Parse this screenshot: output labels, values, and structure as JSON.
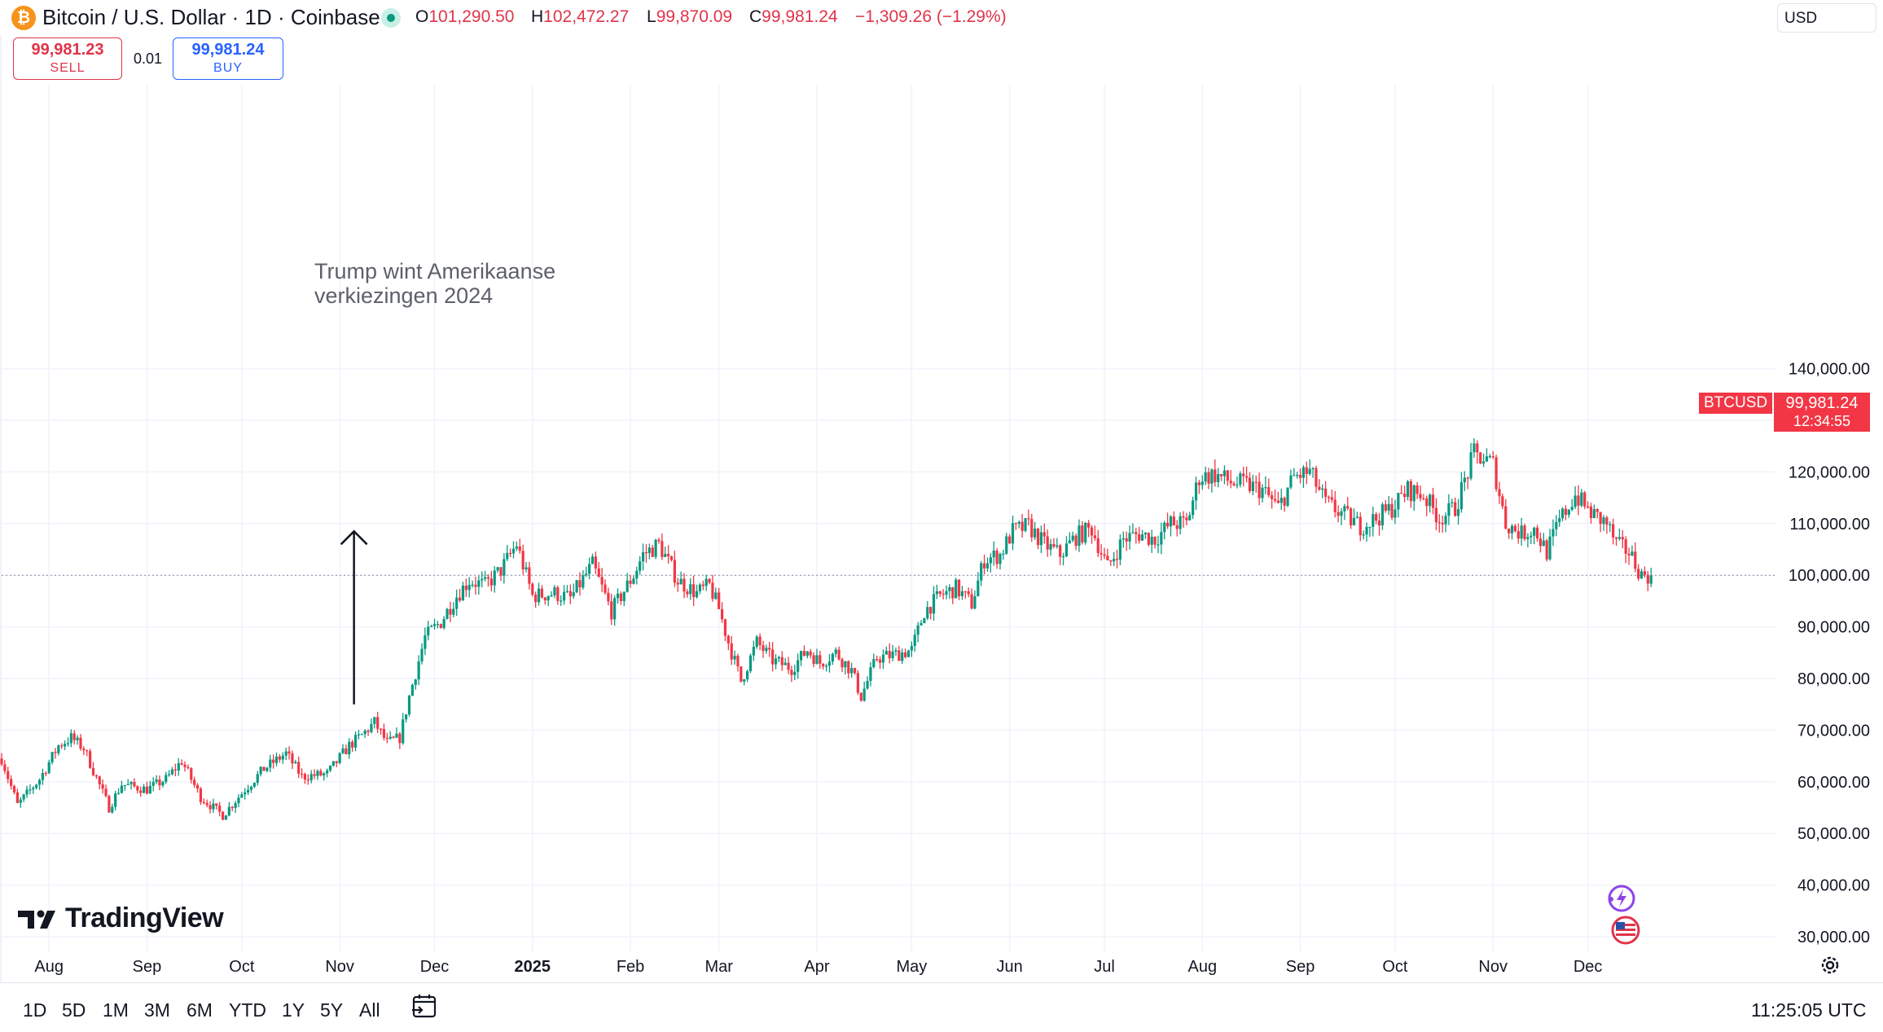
{
  "header": {
    "symbol_letter": "₿",
    "title": "Bitcoin / U.S. Dollar · 1D · Coinbase",
    "open_key": "O",
    "open_val": "101,290.50",
    "high_key": "H",
    "high_val": "102,472.27",
    "low_key": "L",
    "low_val": "99,870.09",
    "close_key": "C",
    "close_val": "99,981.24",
    "change": "−1,309.26 (−1.29%)",
    "currency": "USD"
  },
  "trade": {
    "sell_price": "99,981.23",
    "sell_label": "SELL",
    "spread": "0.01",
    "buy_price": "99,981.24",
    "buy_label": "BUY"
  },
  "price_tag": {
    "symbol": "BTCUSD",
    "price": "99,981.24",
    "countdown": "12:34:55"
  },
  "annotation": {
    "line1": "Trump wint Amerikaanse",
    "line2": "verkiezingen 2024"
  },
  "logo": {
    "text": "TradingView"
  },
  "bottom": {
    "ranges": [
      "1D",
      "5D",
      "1M",
      "3M",
      "6M",
      "YTD",
      "1Y",
      "5Y",
      "All"
    ],
    "time": "11:25:05 UTC"
  },
  "colors": {
    "up": "#089981",
    "down": "#f23645",
    "accent": "#2962ff"
  },
  "icons": [
    "bitcoin-icon",
    "market-open-icon",
    "calendar-goto-icon",
    "settings-gear-icon",
    "flash-icon",
    "us-flag-icon"
  ],
  "chart_data": {
    "type": "candlestick",
    "title": "Bitcoin / U.S. Dollar · 1D · Coinbase",
    "ylim": [
      27000,
      147000
    ],
    "y_ticks": [
      30000,
      40000,
      50000,
      60000,
      70000,
      80000,
      90000,
      100000,
      110000,
      120000,
      130000,
      140000
    ],
    "y_tick_labels": [
      "30,000.00",
      "40,000.00",
      "50,000.00",
      "60,000.00",
      "70,000.00",
      "80,000.00",
      "90,000.00",
      "100,000.00",
      "110,000.00",
      "120,000.00",
      "130,000.00",
      "140,000.00"
    ],
    "x_range": [
      "2024-07-17",
      "2025-12-31"
    ],
    "x_ticks": [
      {
        "label": "Aug",
        "date": "2024-08-01"
      },
      {
        "label": "Sep",
        "date": "2024-09-01"
      },
      {
        "label": "Oct",
        "date": "2024-10-01"
      },
      {
        "label": "Nov",
        "date": "2024-11-01"
      },
      {
        "label": "Dec",
        "date": "2024-12-01"
      },
      {
        "label": "2025",
        "date": "2025-01-01"
      },
      {
        "label": "Feb",
        "date": "2025-02-01"
      },
      {
        "label": "Mar",
        "date": "2025-03-01"
      },
      {
        "label": "Apr",
        "date": "2025-04-01"
      },
      {
        "label": "May",
        "date": "2025-05-01"
      },
      {
        "label": "Jun",
        "date": "2025-06-01"
      },
      {
        "label": "Jul",
        "date": "2025-07-01"
      },
      {
        "label": "Aug",
        "date": "2025-08-01"
      },
      {
        "label": "Sep",
        "date": "2025-09-01"
      },
      {
        "label": "Oct",
        "date": "2025-10-01"
      },
      {
        "label": "Nov",
        "date": "2025-11-01"
      },
      {
        "label": "Dec",
        "date": "2025-12-01"
      }
    ],
    "last_price": 99981.24,
    "annotation_arrow": {
      "date": "2024-11-05",
      "from": 75000,
      "to": 108500
    },
    "close_path": [
      [
        "2024-07-17",
        64500
      ],
      [
        "2024-07-22",
        55500
      ],
      [
        "2024-07-29",
        60500
      ],
      [
        "2024-08-04",
        67000
      ],
      [
        "2024-08-08",
        68500
      ],
      [
        "2024-08-12",
        66500
      ],
      [
        "2024-08-20",
        55000
      ],
      [
        "2024-08-24",
        59500
      ],
      [
        "2024-09-01",
        58500
      ],
      [
        "2024-09-07",
        60500
      ],
      [
        "2024-09-12",
        64000
      ],
      [
        "2024-09-18",
        57000
      ],
      [
        "2024-09-25",
        53500
      ],
      [
        "2024-10-02",
        58500
      ],
      [
        "2024-10-08",
        62500
      ],
      [
        "2024-10-15",
        65500
      ],
      [
        "2024-10-20",
        61000
      ],
      [
        "2024-10-28",
        61500
      ],
      [
        "2024-11-04",
        67000
      ],
      [
        "2024-11-08",
        69000
      ],
      [
        "2024-11-12",
        71500
      ],
      [
        "2024-11-16",
        67500
      ],
      [
        "2024-11-20",
        68500
      ],
      [
        "2024-11-23",
        76500
      ],
      [
        "2024-11-28",
        88000
      ],
      [
        "2024-12-03",
        91000
      ],
      [
        "2024-12-08",
        96000
      ],
      [
        "2024-12-12",
        99000
      ],
      [
        "2024-12-17",
        98000
      ],
      [
        "2024-12-22",
        101000
      ],
      [
        "2024-12-27",
        106000
      ],
      [
        "2025-01-01",
        96000
      ],
      [
        "2025-01-08",
        96500
      ],
      [
        "2025-01-13",
        95500
      ],
      [
        "2025-01-20",
        102000
      ],
      [
        "2025-01-26",
        93000
      ],
      [
        "2025-02-02",
        100000
      ],
      [
        "2025-02-05",
        104000
      ],
      [
        "2025-02-10",
        106000
      ],
      [
        "2025-02-16",
        99000
      ],
      [
        "2025-02-22",
        96500
      ],
      [
        "2025-02-26",
        98000
      ],
      [
        "2025-03-01",
        93500
      ],
      [
        "2025-03-04",
        87000
      ],
      [
        "2025-03-08",
        79500
      ],
      [
        "2025-03-13",
        87000
      ],
      [
        "2025-03-18",
        83500
      ],
      [
        "2025-03-24",
        82000
      ],
      [
        "2025-03-29",
        85500
      ],
      [
        "2025-04-02",
        83000
      ],
      [
        "2025-04-07",
        85000
      ],
      [
        "2025-04-12",
        81500
      ],
      [
        "2025-04-15",
        76500
      ],
      [
        "2025-04-20",
        84000
      ],
      [
        "2025-04-25",
        84500
      ],
      [
        "2025-05-01",
        85500
      ],
      [
        "2025-05-05",
        93000
      ],
      [
        "2025-05-10",
        96000
      ],
      [
        "2025-05-15",
        97500
      ],
      [
        "2025-05-20",
        94500
      ],
      [
        "2025-05-24",
        103000
      ],
      [
        "2025-05-29",
        104000
      ],
      [
        "2025-06-02",
        108500
      ],
      [
        "2025-06-07",
        109500
      ],
      [
        "2025-06-12",
        106000
      ],
      [
        "2025-06-17",
        104000
      ],
      [
        "2025-06-22",
        107500
      ],
      [
        "2025-06-27",
        109000
      ],
      [
        "2025-07-02",
        101500
      ],
      [
        "2025-07-07",
        107000
      ],
      [
        "2025-07-12",
        108000
      ],
      [
        "2025-07-17",
        107000
      ],
      [
        "2025-07-22",
        110000
      ],
      [
        "2025-07-27",
        110000
      ],
      [
        "2025-07-31",
        119000
      ],
      [
        "2025-08-05",
        119500
      ],
      [
        "2025-08-10",
        118000
      ],
      [
        "2025-08-15",
        117500
      ],
      [
        "2025-08-20",
        116500
      ],
      [
        "2025-08-25",
        113000
      ],
      [
        "2025-08-30",
        119000
      ],
      [
        "2025-09-04",
        120000
      ],
      [
        "2025-09-09",
        114000
      ],
      [
        "2025-09-14",
        112000
      ],
      [
        "2025-09-20",
        109500
      ],
      [
        "2025-09-25",
        111000
      ],
      [
        "2025-09-30",
        113000
      ],
      [
        "2025-10-05",
        116500
      ],
      [
        "2025-10-10",
        115500
      ],
      [
        "2025-10-15",
        111000
      ],
      [
        "2025-10-20",
        113000
      ],
      [
        "2025-10-26",
        123500
      ],
      [
        "2025-11-01",
        121500
      ],
      [
        "2025-11-05",
        110000
      ],
      [
        "2025-11-10",
        108000
      ],
      [
        "2025-11-14",
        109000
      ],
      [
        "2025-11-18",
        104500
      ],
      [
        "2025-11-22",
        110500
      ],
      [
        "2025-11-27",
        115500
      ],
      [
        "2025-12-02",
        112000
      ],
      [
        "2025-12-07",
        110000
      ],
      [
        "2025-12-10",
        106000
      ],
      [
        "2025-12-14",
        104500
      ],
      [
        "2025-12-18",
        100000
      ],
      [
        "2025-12-21",
        99981
      ]
    ]
  }
}
